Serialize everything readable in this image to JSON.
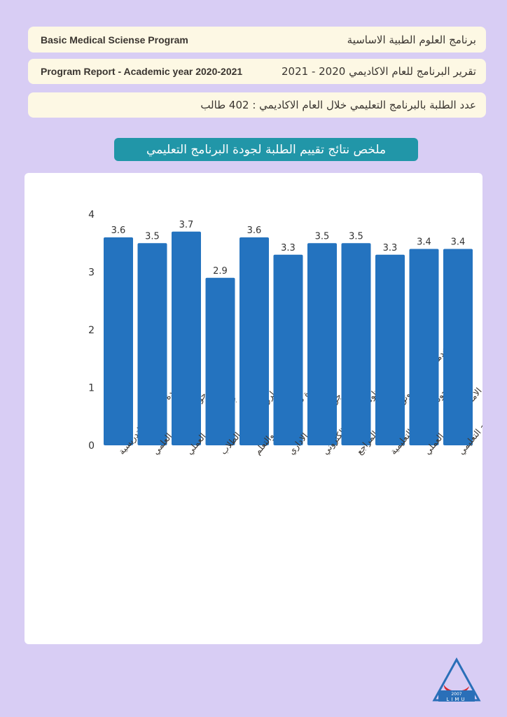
{
  "header": {
    "program_en": "Basic Medical Sciense Program",
    "program_ar": "برنامج العلوم الطبية الاساسية",
    "report_en": "Program Report - Academic year 2020-2021",
    "report_ar": "تقرير البرنامج للعام الاكاديمي 2020 - 2021",
    "students_ar": "عدد الطلبة بالبرنامج التعليمي خلال العام الاكاديمي : 402  طالب"
  },
  "chart_title": "ملخص نتائج تقييم الطلبة لجودة البرنامج التعليمي",
  "logo": {
    "text": "LIMU",
    "year": "2007"
  },
  "colors": {
    "bar": "#2473bf",
    "pill": "#2196a8",
    "background": "#d8cdf4"
  },
  "chart_data": {
    "type": "bar",
    "categories": [
      "جودة المهارات التدريسية",
      "جودة المحتوى العلمي",
      "جودة الجانب العملي",
      "جودة طرق تقييم اداء الطلاب",
      "جودة طرق التعليم والتعلم",
      "جودة التنسيق الاداري",
      "جودة منظومة التعلم الالكتروني",
      "جودة الخدمات المكتبية وتوفر الكتب والمراجع",
      "جودة المرافق التعليمية",
      "تقييم الامتحان النهائي العملي",
      "تقييم طلاب السنة النهائية لجودة البرنامج التعليمي"
    ],
    "values": [
      3.6,
      3.5,
      3.7,
      2.9,
      3.6,
      3.3,
      3.5,
      3.5,
      3.3,
      3.4,
      3.4
    ],
    "data_labels": [
      "3.6",
      "3.5",
      "3.7",
      "2.9",
      "3.6",
      "3.3",
      "3.5",
      "3.5",
      "3.3",
      "3.4",
      "3.4"
    ],
    "yticks": [
      "0",
      "1",
      "2",
      "3",
      "4"
    ],
    "ylim": [
      0,
      4
    ],
    "grid": false,
    "title": "ملخص نتائج تقييم الطلبة لجودة البرنامج التعليمي"
  }
}
